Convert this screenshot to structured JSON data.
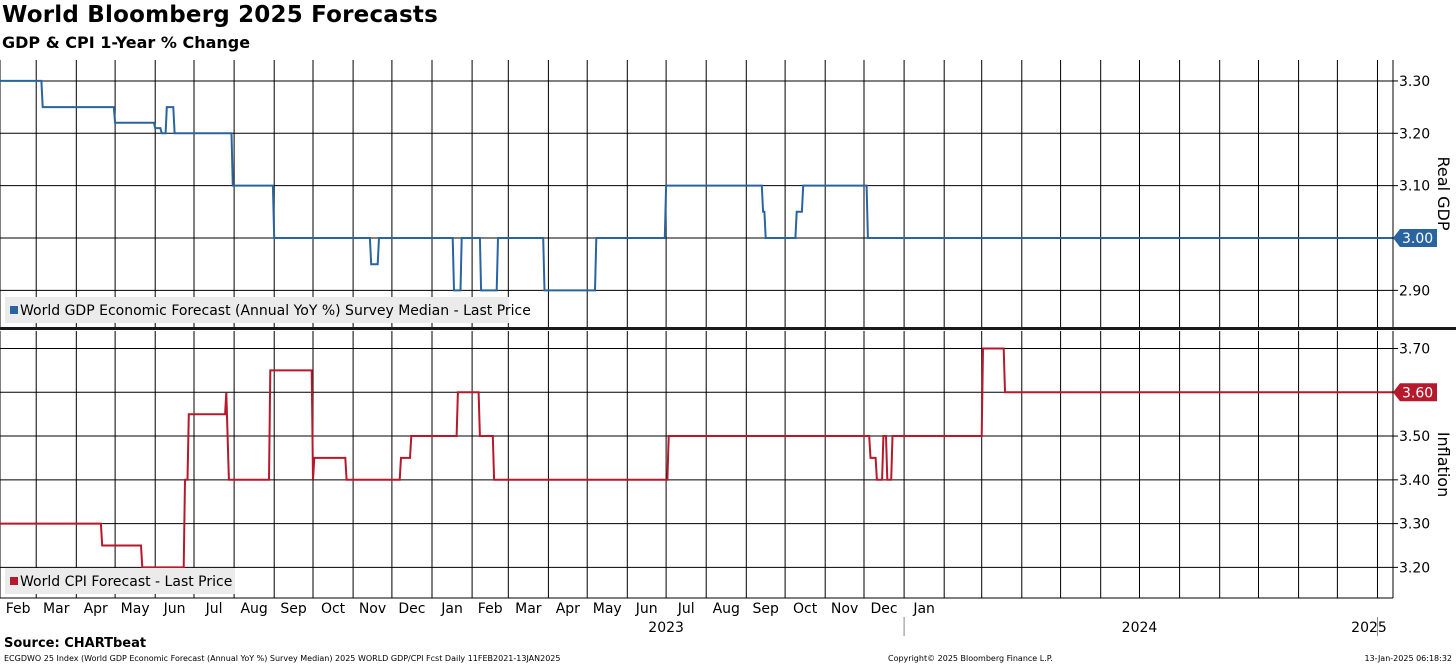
{
  "title": "World Bloomberg 2025 Forecasts",
  "subtitle": "GDP & CPI 1-Year % Change",
  "source": "Source: CHARTbeat",
  "footer": {
    "left": "ECGDWO 25 Index (World GDP Economic Forecast (Annual YoY %) Survey Median) 2025 WORLD GDP/CPI Fcst  Daily 11FEB2021-13JAN2025",
    "center": "Copyright© 2025 Bloomberg Finance L.P.",
    "right": "13-Jan-2025 06:18:32"
  },
  "colors": {
    "gdp": "#2a64a0",
    "cpi": "#b5192b",
    "grid": "#000000",
    "legend_bg": "#ebebeb"
  },
  "chart_data": [
    {
      "type": "line",
      "ylabel": "Real GDP",
      "legend": "World GDP Economic Forecast (Annual YoY %) Survey Median - Last Price",
      "legend_position": "bottom-left",
      "ylim": [
        2.83,
        3.34
      ],
      "yticks": [
        "3.30",
        "3.20",
        "3.10",
        "3.00",
        "2.90"
      ],
      "last_value": "3.00",
      "xlim": [
        "2022-02-01",
        "2025-01-13"
      ],
      "x_tick_labels": [
        "Feb",
        "Mar",
        "Apr",
        "May",
        "Jun",
        "Jul",
        "Aug",
        "Sep",
        "Oct",
        "Nov",
        "Dec",
        "Jan",
        "Feb",
        "Mar",
        "Apr",
        "May",
        "Jun",
        "Jul",
        "Aug",
        "Sep",
        "Oct",
        "Nov",
        "Dec",
        "Jan"
      ],
      "year_labels": [
        "2023",
        "2024",
        "2025"
      ],
      "grid": true,
      "series": [
        {
          "x": [
            "2022-02-01",
            "2022-03-05",
            "2022-03-06",
            "2022-04-30",
            "2022-05-01",
            "2022-05-31",
            "2022-06-01",
            "2022-06-05",
            "2022-06-06",
            "2022-06-09",
            "2022-06-10",
            "2022-06-15",
            "2022-06-16",
            "2022-06-30",
            "2022-07-01",
            "2022-07-04",
            "2022-07-05",
            "2022-07-30",
            "2022-07-31",
            "2022-08-31",
            "2022-09-01",
            "2022-11-14",
            "2022-11-15",
            "2022-11-20",
            "2022-11-21",
            "2023-01-17",
            "2023-01-18",
            "2023-01-23",
            "2023-01-24",
            "2023-02-07",
            "2023-02-08",
            "2023-02-20",
            "2023-02-21",
            "2023-03-28",
            "2023-03-29",
            "2023-05-07",
            "2023-05-08",
            "2023-06-30",
            "2023-07-01",
            "2023-09-13",
            "2023-09-14",
            "2023-09-15",
            "2023-09-16",
            "2023-10-09",
            "2023-10-10",
            "2023-10-14",
            "2023-10-15",
            "2023-12-03",
            "2023-12-04",
            "2025-01-13"
          ],
          "y": [
            3.3,
            3.3,
            3.25,
            3.25,
            3.22,
            3.22,
            3.21,
            3.21,
            3.2,
            3.2,
            3.25,
            3.25,
            3.2,
            3.2,
            3.2,
            3.2,
            3.2,
            3.2,
            3.1,
            3.1,
            3.0,
            3.0,
            2.95,
            2.95,
            3.0,
            3.0,
            2.9,
            2.9,
            3.0,
            3.0,
            2.9,
            2.9,
            3.0,
            3.0,
            2.9,
            2.9,
            3.0,
            3.0,
            3.1,
            3.1,
            3.05,
            3.05,
            3.0,
            3.0,
            3.05,
            3.05,
            3.1,
            3.1,
            3.0,
            3.0
          ]
        }
      ]
    },
    {
      "type": "line",
      "ylabel": "Inflation",
      "legend": "World CPI Forecast - Last Price",
      "legend_position": "bottom-left",
      "ylim": [
        3.13,
        3.74
      ],
      "yticks": [
        "3.70",
        "3.60",
        "3.50",
        "3.40",
        "3.30",
        "3.20"
      ],
      "last_value": "3.60",
      "grid": true,
      "series": [
        {
          "x": [
            "2022-02-01",
            "2022-04-20",
            "2022-04-21",
            "2022-05-21",
            "2022-05-22",
            "2022-06-23",
            "2022-06-24",
            "2022-06-26",
            "2022-06-27",
            "2022-07-01",
            "2022-07-02",
            "2022-07-25",
            "2022-07-26",
            "2022-07-28",
            "2022-08-28",
            "2022-08-29",
            "2022-09-30",
            "2022-10-01",
            "2022-10-02",
            "2022-10-26",
            "2022-10-27",
            "2022-12-07",
            "2022-12-08",
            "2022-12-15",
            "2022-12-16",
            "2023-01-20",
            "2023-01-21",
            "2023-02-06",
            "2023-02-07",
            "2023-02-17",
            "2023-02-18",
            "2023-07-02",
            "2023-07-03",
            "2023-12-05",
            "2023-12-06",
            "2023-12-10",
            "2023-12-11",
            "2023-12-15",
            "2023-12-16",
            "2023-12-18",
            "2023-12-19",
            "2023-12-22",
            "2023-12-23",
            "2024-01-13",
            "2024-01-14",
            "2024-03-01",
            "2024-03-02",
            "2024-03-18",
            "2024-03-19",
            "2025-01-13"
          ],
          "y": [
            3.3,
            3.3,
            3.25,
            3.25,
            3.2,
            3.2,
            3.4,
            3.4,
            3.55,
            3.55,
            3.55,
            3.55,
            3.6,
            3.4,
            3.4,
            3.65,
            3.65,
            3.4,
            3.45,
            3.45,
            3.4,
            3.4,
            3.45,
            3.45,
            3.5,
            3.5,
            3.6,
            3.6,
            3.5,
            3.5,
            3.4,
            3.4,
            3.5,
            3.5,
            3.45,
            3.45,
            3.4,
            3.4,
            3.5,
            3.5,
            3.4,
            3.4,
            3.5,
            3.5,
            3.5,
            3.5,
            3.7,
            3.7,
            3.6,
            3.6
          ]
        }
      ]
    }
  ]
}
